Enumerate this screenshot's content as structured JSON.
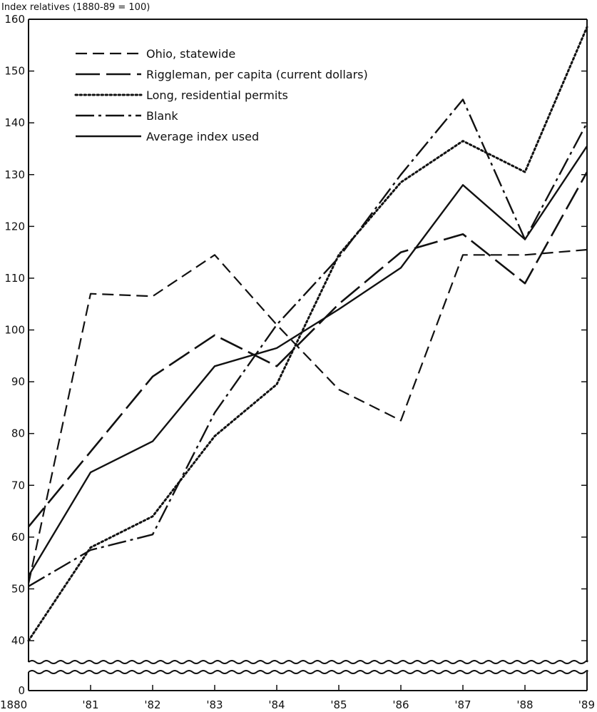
{
  "chart_data": {
    "type": "line",
    "ylabel": "Index relatives (1880-89 = 100)",
    "x": [
      "1880",
      "'81",
      "'82",
      "'83",
      "'84",
      "'85",
      "'86",
      "'87",
      "'88",
      "'89"
    ],
    "y_ticks": [
      0,
      40,
      50,
      60,
      70,
      80,
      90,
      100,
      110,
      120,
      130,
      140,
      150,
      160
    ],
    "ylim": [
      0,
      160
    ],
    "axis_break": "between 0 and 40",
    "grid": false,
    "legend_position": "top-left",
    "series": [
      {
        "name": "Ohio, statewide",
        "style": "dashed",
        "values": [
          51,
          107,
          106.5,
          114.5,
          101,
          88.5,
          82.5,
          114.5,
          114.5,
          115.5
        ]
      },
      {
        "name": "Riggleman, per capita (current dollars)",
        "style": "long-dash",
        "values": [
          62,
          76.5,
          91,
          99,
          93,
          105,
          115,
          118.5,
          109,
          130.5
        ]
      },
      {
        "name": "Long, residential permits",
        "style": "dotted",
        "values": [
          40,
          58,
          64,
          79.5,
          89.5,
          114.5,
          128.5,
          136.5,
          130.5,
          158.5
        ]
      },
      {
        "name": "Blank",
        "style": "dash-dot",
        "values": [
          50.5,
          57.5,
          60.5,
          84,
          101,
          114,
          130,
          144.5,
          117.5,
          140
        ]
      },
      {
        "name": "Average index used",
        "style": "solid",
        "values": [
          52.5,
          72.5,
          78.5,
          93,
          96.5,
          104,
          112,
          128,
          117.5,
          135.5
        ]
      }
    ]
  }
}
